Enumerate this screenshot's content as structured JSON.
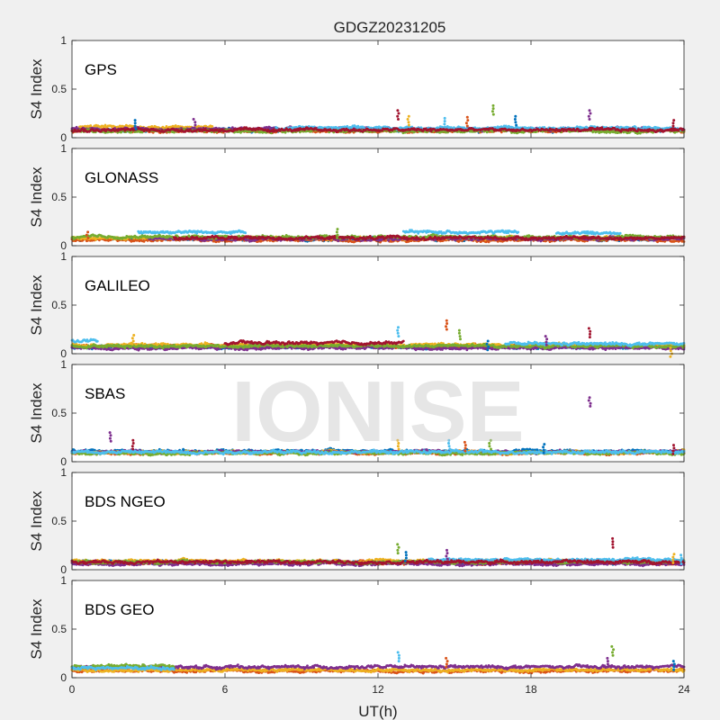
{
  "figure": {
    "title": "GDGZ20231205",
    "xlabel": "UT(h)",
    "watermark": "IONISE"
  },
  "chart_data": {
    "type": "scatter",
    "x_range": [
      0,
      24
    ],
    "x_ticks": [
      0,
      6,
      12,
      18,
      24
    ],
    "x_tick_labels": [
      "0",
      "6",
      "12",
      "18",
      "24"
    ],
    "y_range": [
      0,
      1
    ],
    "y_ticks": [
      0,
      0.5,
      1
    ],
    "y_tick_labels": [
      "0",
      "0.5",
      "1"
    ],
    "ylabel": "S4 Index",
    "xlabel": "UT(h)",
    "grid": false,
    "series_colors": [
      "#0072BD",
      "#D95319",
      "#EDB120",
      "#7E2F8E",
      "#77AC30",
      "#4DBEEE",
      "#A2142F"
    ],
    "panels": [
      {
        "name": "GPS",
        "baseline": 0.08,
        "segments": [
          {
            "color": 0,
            "x0": 0.0,
            "x1": 24.0,
            "level": 0.08
          },
          {
            "color": 1,
            "x0": 0.0,
            "x1": 24.0,
            "level": 0.07
          },
          {
            "color": 2,
            "x0": 0.3,
            "x1": 5.5,
            "level": 0.11
          },
          {
            "color": 3,
            "x0": 0.0,
            "x1": 24.0,
            "level": 0.09
          },
          {
            "color": 4,
            "x0": 0.0,
            "x1": 24.0,
            "level": 0.07
          },
          {
            "color": 5,
            "x0": 8.0,
            "x1": 24.0,
            "level": 0.1
          },
          {
            "color": 6,
            "x0": 0.0,
            "x1": 24.0,
            "level": 0.08
          }
        ],
        "spikes": [
          {
            "x": 2.5,
            "y": 0.18
          },
          {
            "x": 4.8,
            "y": 0.19
          },
          {
            "x": 12.8,
            "y": 0.28
          },
          {
            "x": 13.2,
            "y": 0.22
          },
          {
            "x": 14.6,
            "y": 0.2
          },
          {
            "x": 15.5,
            "y": 0.21
          },
          {
            "x": 16.5,
            "y": 0.33
          },
          {
            "x": 17.4,
            "y": 0.22
          },
          {
            "x": 20.3,
            "y": 0.28
          },
          {
            "x": 23.6,
            "y": 0.18
          }
        ]
      },
      {
        "name": "GLONASS",
        "baseline": 0.08,
        "segments": [
          {
            "color": 0,
            "x0": 0.0,
            "x1": 24.0,
            "level": 0.07
          },
          {
            "color": 1,
            "x0": 0.0,
            "x1": 24.0,
            "level": 0.06
          },
          {
            "color": 2,
            "x0": 0.0,
            "x1": 24.0,
            "level": 0.08
          },
          {
            "color": 3,
            "x0": 3.0,
            "x1": 24.0,
            "level": 0.07
          },
          {
            "color": 4,
            "x0": 0.0,
            "x1": 24.0,
            "level": 0.09
          },
          {
            "color": 5,
            "x0": 2.6,
            "x1": 6.8,
            "level": 0.14
          },
          {
            "color": 5,
            "x0": 13.0,
            "x1": 17.5,
            "level": 0.14
          },
          {
            "color": 5,
            "x0": 19.0,
            "x1": 21.5,
            "level": 0.13
          },
          {
            "color": 6,
            "x0": 4.0,
            "x1": 24.0,
            "level": 0.08
          }
        ],
        "spikes": [
          {
            "x": 0.6,
            "y": 0.14
          },
          {
            "x": 10.4,
            "y": 0.17
          }
        ]
      },
      {
        "name": "GALILEO",
        "baseline": 0.08,
        "segments": [
          {
            "color": 0,
            "x0": 0.0,
            "x1": 24.0,
            "level": 0.07
          },
          {
            "color": 1,
            "x0": 0.0,
            "x1": 24.0,
            "level": 0.08
          },
          {
            "color": 2,
            "x0": 0.0,
            "x1": 24.0,
            "level": 0.09
          },
          {
            "color": 3,
            "x0": 0.0,
            "x1": 24.0,
            "level": 0.06
          },
          {
            "color": 4,
            "x0": 0.0,
            "x1": 24.0,
            "level": 0.08
          },
          {
            "color": 5,
            "x0": 0.0,
            "x1": 1.0,
            "level": 0.13
          },
          {
            "color": 5,
            "x0": 17.0,
            "x1": 24.0,
            "level": 0.1
          },
          {
            "color": 6,
            "x0": 6.0,
            "x1": 13.0,
            "level": 0.11
          }
        ],
        "spikes": [
          {
            "x": 2.4,
            "y": 0.19
          },
          {
            "x": 12.8,
            "y": 0.27
          },
          {
            "x": 14.7,
            "y": 0.34
          },
          {
            "x": 15.2,
            "y": 0.24
          },
          {
            "x": 16.3,
            "y": 0.13
          },
          {
            "x": 18.6,
            "y": 0.18
          },
          {
            "x": 20.3,
            "y": 0.26
          },
          {
            "x": 23.5,
            "y": 0.06
          }
        ]
      },
      {
        "name": "SBAS",
        "baseline": 0.1,
        "segments": [
          {
            "color": 0,
            "x0": 0.0,
            "x1": 24.0,
            "level": 0.11
          },
          {
            "color": 1,
            "x0": 0.0,
            "x1": 24.0,
            "level": 0.09
          },
          {
            "color": 2,
            "x0": 0.0,
            "x1": 24.0,
            "level": 0.1
          },
          {
            "color": 3,
            "x0": 0.0,
            "x1": 24.0,
            "level": 0.1
          },
          {
            "color": 4,
            "x0": 0.0,
            "x1": 24.0,
            "level": 0.09
          },
          {
            "color": 5,
            "x0": 0.0,
            "x1": 24.0,
            "level": 0.1
          }
        ],
        "spikes": [
          {
            "x": 1.5,
            "y": 0.3
          },
          {
            "x": 2.4,
            "y": 0.22
          },
          {
            "x": 12.8,
            "y": 0.22
          },
          {
            "x": 14.8,
            "y": 0.22
          },
          {
            "x": 15.4,
            "y": 0.2
          },
          {
            "x": 16.4,
            "y": 0.22
          },
          {
            "x": 18.5,
            "y": 0.18
          },
          {
            "x": 20.3,
            "y": 0.66
          },
          {
            "x": 23.6,
            "y": 0.17
          }
        ]
      },
      {
        "name": "BDS NGEO",
        "baseline": 0.08,
        "segments": [
          {
            "color": 0,
            "x0": 0.0,
            "x1": 24.0,
            "level": 0.08
          },
          {
            "color": 1,
            "x0": 0.0,
            "x1": 24.0,
            "level": 0.07
          },
          {
            "color": 2,
            "x0": 0.0,
            "x1": 24.0,
            "level": 0.09
          },
          {
            "color": 3,
            "x0": 0.0,
            "x1": 24.0,
            "level": 0.06
          },
          {
            "color": 4,
            "x0": 0.0,
            "x1": 24.0,
            "level": 0.08
          },
          {
            "color": 5,
            "x0": 14.0,
            "x1": 24.0,
            "level": 0.1
          },
          {
            "color": 6,
            "x0": 0.0,
            "x1": 24.0,
            "level": 0.08
          }
        ],
        "spikes": [
          {
            "x": 12.8,
            "y": 0.26
          },
          {
            "x": 13.1,
            "y": 0.18
          },
          {
            "x": 14.7,
            "y": 0.2
          },
          {
            "x": 21.2,
            "y": 0.32
          },
          {
            "x": 23.6,
            "y": 0.16
          },
          {
            "x": 23.9,
            "y": 0.15
          }
        ]
      },
      {
        "name": "BDS GEO",
        "baseline": 0.1,
        "segments": [
          {
            "color": 1,
            "x0": 0.0,
            "x1": 24.0,
            "level": 0.07
          },
          {
            "color": 2,
            "x0": 0.0,
            "x1": 24.0,
            "level": 0.08
          },
          {
            "color": 3,
            "x0": 0.0,
            "x1": 24.0,
            "level": 0.11
          },
          {
            "color": 4,
            "x0": 0.0,
            "x1": 4.0,
            "level": 0.12
          },
          {
            "color": 5,
            "x0": 0.0,
            "x1": 4.0,
            "level": 0.1
          }
        ],
        "spikes": [
          {
            "x": 12.8,
            "y": 0.26
          },
          {
            "x": 14.7,
            "y": 0.2
          },
          {
            "x": 21.2,
            "y": 0.32
          },
          {
            "x": 23.6,
            "y": 0.17
          },
          {
            "x": 21.0,
            "y": 0.2
          }
        ]
      }
    ]
  }
}
